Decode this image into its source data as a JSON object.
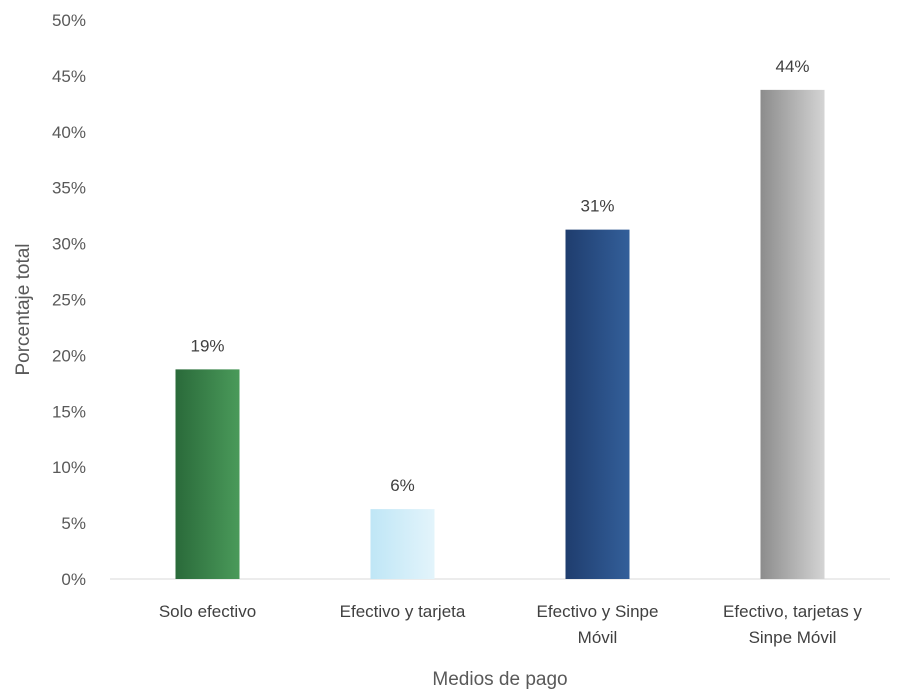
{
  "chart_data": {
    "type": "bar",
    "title": "",
    "xlabel": "Medios de pago",
    "ylabel": "Porcentaje total",
    "ylim": [
      0,
      50
    ],
    "y_ticks": [
      "0%",
      "5%",
      "10%",
      "15%",
      "20%",
      "25%",
      "30%",
      "35%",
      "40%",
      "45%",
      "50%"
    ],
    "grid": false,
    "legend": "none",
    "categories": [
      [
        "Solo efectivo"
      ],
      [
        "Efectivo y tarjeta"
      ],
      [
        "Efectivo y Sinpe",
        "Móvil"
      ],
      [
        "Efectivo, tarjetas y",
        "Sinpe Móvil"
      ]
    ],
    "values": [
      18.75,
      6.25,
      31.25,
      43.75
    ],
    "data_labels": [
      "19%",
      "6%",
      "31%",
      "44%"
    ],
    "colors": [
      [
        "#2a6a3a",
        "#4a9a5a"
      ],
      [
        "#bfe6f6",
        "#e3f4fb"
      ],
      [
        "#1f3d6e",
        "#335f9a"
      ],
      [
        "#8c8c8c",
        "#d4d4d4"
      ]
    ],
    "axis_color": "#d9d9d9"
  }
}
